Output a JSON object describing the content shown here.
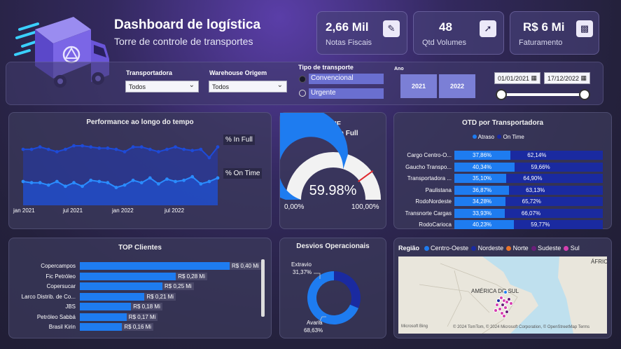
{
  "header": {
    "title": "Dashboard de logística",
    "subtitle": "Torre de controle de transportes"
  },
  "kpis": [
    {
      "value": "2,66 Mil",
      "label": "Notas Fiscais",
      "icon": "invoice-icon"
    },
    {
      "value": "48",
      "label": "Qtd Volumes",
      "icon": "dolly-icon"
    },
    {
      "value": "R$ 6 Mi",
      "label": "Faturamento",
      "icon": "money-icon"
    }
  ],
  "filters": {
    "transportadora": {
      "label": "Transportadora",
      "value": "Todos"
    },
    "warehouse": {
      "label": "Warehouse Origem",
      "value": "Todos"
    },
    "tipo": {
      "label": "Tipo de transporte",
      "options": [
        "Convencional",
        "Urgente"
      ],
      "selected": "Convencional"
    },
    "ano": {
      "label": "Ano",
      "options": [
        "2021",
        "2022"
      ]
    },
    "date_start": "01/01/2021",
    "date_end": "17/12/2022"
  },
  "performance": {
    "title": "Performance ao longo do tempo",
    "series_labels": [
      "% In Full",
      "% On Time"
    ],
    "x_ticks": [
      "jan 2021",
      "jul 2021",
      "jan 2022",
      "jul 2022"
    ]
  },
  "otif": {
    "title": "OTIF",
    "subtitle": "On Time In Full",
    "value": "59.98%",
    "min_label": "0,00%",
    "max_label": "100,00%",
    "fraction": 0.5998,
    "target_fraction": 0.8
  },
  "otd": {
    "title": "OTD  por Transportadora",
    "legend": [
      "Atraso",
      "On Time"
    ],
    "rows": [
      {
        "name": "Cargo Centro-O...",
        "atraso": "37,86%",
        "ontime": "62,14%",
        "atraso_frac": 0.3786
      },
      {
        "name": "Gaucho Transpo...",
        "atraso": "40,34%",
        "ontime": "59,66%",
        "atraso_frac": 0.4034
      },
      {
        "name": "Transportadora ...",
        "atraso": "35,10%",
        "ontime": "64,90%",
        "atraso_frac": 0.351
      },
      {
        "name": "Paulistana",
        "atraso": "36,87%",
        "ontime": "63,13%",
        "atraso_frac": 0.3687
      },
      {
        "name": "RodoNordeste",
        "atraso": "34,28%",
        "ontime": "65,72%",
        "atraso_frac": 0.3428
      },
      {
        "name": "Transnorte Cargas",
        "atraso": "33,93%",
        "ontime": "66,07%",
        "atraso_frac": 0.3393
      },
      {
        "name": "RodoCarioca",
        "atraso": "40,23%",
        "ontime": "59,77%",
        "atraso_frac": 0.4023
      }
    ]
  },
  "top_clientes": {
    "title": "TOP Clientes",
    "rows": [
      {
        "name": "Copercampos",
        "value": "R$ 0,40 Mi",
        "num": 0.4
      },
      {
        "name": "Fic Petróleo",
        "value": "R$ 0,28 Mi",
        "num": 0.28
      },
      {
        "name": "Copersucar",
        "value": "R$ 0,25 Mi",
        "num": 0.25
      },
      {
        "name": "Larco Distrib. de Co...",
        "value": "R$ 0,21 Mi",
        "num": 0.21
      },
      {
        "name": "JBS",
        "value": "R$ 0,18 Mi",
        "num": 0.18
      },
      {
        "name": "Petróleo Sabbá",
        "value": "R$ 0,17 Mi",
        "num": 0.17
      },
      {
        "name": "Brasil Kirin",
        "value": "R$ 0,16 Mi",
        "num": 0.16
      }
    ]
  },
  "desvios": {
    "title": "Desvios Operacionais",
    "slices": [
      {
        "name": "Extravio",
        "pct": "31,37%",
        "value": 31.37,
        "color": "#1a2aa0"
      },
      {
        "name": "Avaria",
        "pct": "68,63%",
        "value": 68.63,
        "color": "#1e7cf0"
      }
    ]
  },
  "mapa": {
    "legend_title": "Região",
    "regions": [
      {
        "name": "Centro-Oeste",
        "color": "#1e7cf0"
      },
      {
        "name": "Nordeste",
        "color": "#1a2aa0"
      },
      {
        "name": "Norte",
        "color": "#e8732a"
      },
      {
        "name": "Sudeste",
        "color": "#6b1f7a"
      },
      {
        "name": "Sul",
        "color": "#d63fb0"
      }
    ],
    "labels": {
      "continent": "AMÉRICA DO SUL",
      "africa": "ÁFRIC"
    },
    "attribution": "© 2024 TomTom, © 2024 Microsoft Corporation, © OpenStreetMap  Terms",
    "bing": "Microsoft Bing"
  },
  "colors": {
    "accent": "#1e7cf0",
    "dark_blue": "#1a2aa0",
    "panel": "#3c3a5c"
  },
  "chart_data": [
    {
      "type": "line",
      "title": "Performance ao longo do tempo",
      "x": [
        "2021-01",
        "2021-02",
        "2021-03",
        "2021-04",
        "2021-05",
        "2021-06",
        "2021-07",
        "2021-08",
        "2021-09",
        "2021-10",
        "2021-11",
        "2021-12",
        "2022-01",
        "2022-02",
        "2022-03",
        "2022-04",
        "2022-05",
        "2022-06",
        "2022-07",
        "2022-08",
        "2022-09",
        "2022-10",
        "2022-11",
        "2022-12"
      ],
      "x_tick_labels": [
        "jan 2021",
        "jul 2021",
        "jan 2022",
        "jul 2022"
      ],
      "ylim": [
        0,
        100
      ],
      "series": [
        {
          "name": "% In Full",
          "color": "#1e4bd8",
          "values": [
            87,
            87,
            89,
            87,
            85,
            87,
            90,
            90,
            89,
            88,
            88,
            87,
            85,
            89,
            89,
            87,
            85,
            87,
            89,
            87,
            86,
            87,
            80,
            89
          ]
        },
        {
          "name": "% On Time",
          "color": "#2a8cff",
          "values": [
            60,
            59,
            59,
            57,
            60,
            56,
            59,
            56,
            61,
            60,
            59,
            55,
            57,
            61,
            59,
            63,
            58,
            62,
            60,
            61,
            64,
            58,
            60,
            63
          ]
        }
      ]
    },
    {
      "type": "gauge",
      "title": "OTIF",
      "value": 59.98,
      "min": 0,
      "max": 100,
      "target": 80
    },
    {
      "type": "bar",
      "stacked": true,
      "orientation": "horizontal",
      "title": "OTD  por Transportadora",
      "categories": [
        "Cargo Centro-O...",
        "Gaucho Transpo...",
        "Transportadora ...",
        "Paulistana",
        "RodoNordeste",
        "Transnorte Cargas",
        "RodoCarioca"
      ],
      "series": [
        {
          "name": "Atraso",
          "values": [
            37.86,
            40.34,
            35.1,
            36.87,
            34.28,
            33.93,
            40.23
          ]
        },
        {
          "name": "On Time",
          "values": [
            62.14,
            59.66,
            64.9,
            63.13,
            65.72,
            66.07,
            59.77
          ]
        }
      ]
    },
    {
      "type": "bar",
      "orientation": "horizontal",
      "title": "TOP Clientes",
      "categories": [
        "Copercampos",
        "Fic Petróleo",
        "Copersucar",
        "Larco Distrib. de Co...",
        "JBS",
        "Petróleo Sabbá",
        "Brasil Kirin"
      ],
      "values": [
        0.4,
        0.28,
        0.25,
        0.21,
        0.18,
        0.17,
        0.16
      ]
    },
    {
      "type": "pie",
      "title": "Desvios Operacionais",
      "categories": [
        "Extravio",
        "Avaria"
      ],
      "values": [
        31.37,
        68.63
      ]
    }
  ]
}
